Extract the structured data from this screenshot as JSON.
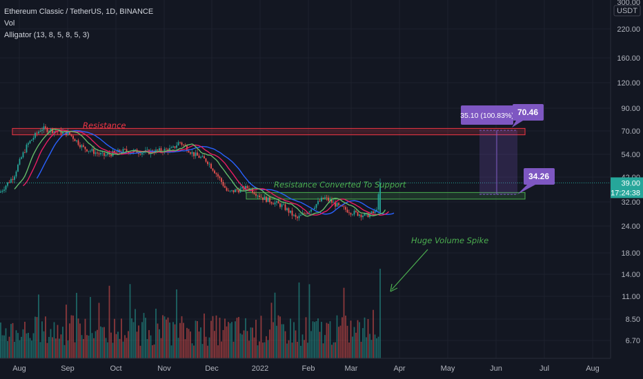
{
  "header": {
    "symbol_line": "Ethereum Classic / TetherUS, 1D, BINANCE",
    "indicator_vol": "Vol",
    "indicator_alligator": "Alligator (13, 8, 5, 8, 5, 3)"
  },
  "price_axis": {
    "currency": "USDT",
    "top_label": "300.00",
    "ticks": [
      "220.00",
      "160.00",
      "120.00",
      "90.00",
      "70.00",
      "54.00",
      "42.00",
      "32.00",
      "24.00",
      "18.00",
      "14.00",
      "11.00",
      "8.50",
      "6.70"
    ],
    "current_price": "39.00",
    "countdown": "17:24:38"
  },
  "time_axis": {
    "labels": [
      "Aug",
      "Sep",
      "Oct",
      "Nov",
      "Dec",
      "2022",
      "Feb",
      "Mar",
      "Apr",
      "May",
      "Jun",
      "Jul",
      "Aug"
    ]
  },
  "annotations": {
    "resistance": "Resistance",
    "support": "Resistance Converted To Support",
    "volume_spike": "Huge Volume Spike",
    "measure": "35.10 (100.83%)",
    "target_high": "70.46",
    "target_low": "34.26"
  },
  "colors": {
    "background": "#131722",
    "up": "#26a69a",
    "down": "#ef5350",
    "jaw": "#2962ff",
    "teeth": "#e91e63",
    "lips": "#66bb6a",
    "resistance": "#f23645",
    "support": "#4caf50",
    "measure": "#7e57c2",
    "price_tag": "#26a69a"
  },
  "chart_data": {
    "type": "candlestick",
    "scale": "log",
    "x_range": [
      "2021-07-20",
      "2022-08-28"
    ],
    "y_range": [
      5.5,
      300
    ],
    "resistance_zone": [
      67,
      72
    ],
    "support_zone": [
      32.5,
      35
    ],
    "series": [
      {
        "name": "Vol",
        "type": "bar"
      },
      {
        "name": "Alligator (13, 8, 5, 8, 5, 3)",
        "type": "line"
      }
    ]
  }
}
